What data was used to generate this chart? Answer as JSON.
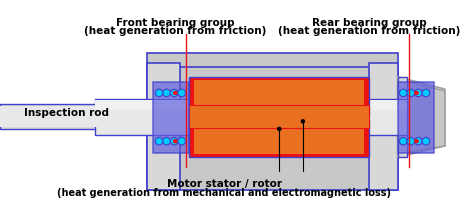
{
  "bg_color": "#ffffff",
  "title": "",
  "text_front_bearing_line1": "Front bearing group",
  "text_front_bearing_line2": "(heat generation from friction)",
  "text_rear_bearing_line1": "Rear bearing group",
  "text_rear_bearing_line2": "(heat generation from friction)",
  "text_inspection_rod": "Inspection rod",
  "text_motor_line1": "Motor stator / rotor",
  "text_motor_line2": "(heat generation from mechanical and electromagnetic loss)",
  "colors": {
    "gray_light": "#c8c8c8",
    "gray_mid": "#a0a0a0",
    "gray_dark": "#808080",
    "blue_outline": "#4040cc",
    "blue_fill": "#6060dd",
    "red_bright": "#ee1111",
    "orange": "#e87020",
    "cyan_ball": "#00ccff",
    "white": "#ffffff",
    "silver": "#d8d8d8",
    "silver2": "#e8e8e8"
  }
}
